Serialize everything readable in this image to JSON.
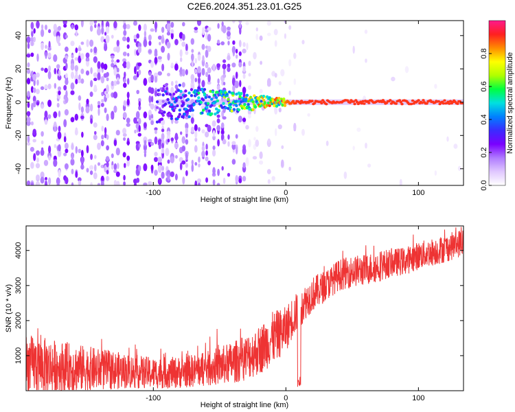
{
  "figure_title": "C2E6.2024.351.23.01.G25",
  "colors": {
    "snr_line": "#ee3333",
    "colormap": [
      "#ffffff",
      "#e0c8ff",
      "#b07cff",
      "#7a00ff",
      "#3b2bff",
      "#0080ff",
      "#00e0e0",
      "#00ff40",
      "#b0ff00",
      "#ffff00",
      "#ff8c00",
      "#ff2020",
      "#ff1a8c"
    ]
  },
  "chart_data": [
    {
      "type": "heatmap",
      "title": "",
      "xlabel": "Height of straight line (km)",
      "ylabel": "Frequency (Hz)",
      "xlim": [
        -196,
        134
      ],
      "ylim": [
        -50,
        49
      ],
      "x_ticks": [
        -100,
        0,
        100
      ],
      "x_tick_labels": [
        "-100",
        "0",
        "100"
      ],
      "y_ticks": [
        -40,
        -20,
        0,
        20,
        40
      ],
      "y_tick_labels": [
        "-40",
        "-20",
        "0",
        "20",
        "40"
      ],
      "colorbar": {
        "label": "Normalized spectral amplitude",
        "range": [
          0,
          1
        ],
        "ticks": [
          0.0,
          0.2,
          0.4,
          0.6,
          0.8
        ],
        "tick_labels": [
          "0.0",
          "0.2",
          "0.4",
          "0.6",
          "0.8"
        ]
      },
      "features": [
        {
          "region": "broadband noise",
          "x_range": [
            -196,
            -30
          ],
          "freq_range": [
            -50,
            49
          ],
          "amplitude": [
            0.05,
            0.25
          ]
        },
        {
          "region": "noise tapering",
          "x_range": [
            -60,
            10
          ],
          "freq_range": [
            -50,
            49
          ],
          "amplitude": [
            0.02,
            0.1
          ]
        },
        {
          "region": "carrier line",
          "x_range": [
            -97,
            134
          ],
          "freq_center": 0,
          "amplitude_start": 0.3,
          "amplitude_end": 0.9
        }
      ]
    },
    {
      "type": "line",
      "title": "",
      "xlabel": "Height of straight line (km)",
      "ylabel": "SNR (10 * v/v)",
      "xlim": [
        -196,
        134
      ],
      "ylim": [
        0,
        4700
      ],
      "x_ticks": [
        -100,
        0,
        100
      ],
      "x_tick_labels": [
        "-100",
        "0",
        "100"
      ],
      "y_ticks": [
        1000,
        2000,
        3000,
        4000
      ],
      "y_tick_labels": [
        "1000",
        "2000",
        "3000",
        "4000"
      ],
      "series": [
        {
          "x": [
            -196,
            -180,
            -160,
            -140,
            -120,
            -100,
            -80,
            -60,
            -40,
            -30,
            -20,
            -10,
            0,
            5,
            10,
            15,
            20,
            30,
            40,
            50,
            60,
            70,
            80,
            90,
            100,
            110,
            120,
            134
          ],
          "y": [
            750,
            700,
            650,
            600,
            560,
            500,
            520,
            620,
            800,
            950,
            1150,
            1500,
            1750,
            2100,
            2300,
            2550,
            2750,
            3000,
            3300,
            3400,
            3450,
            3550,
            3650,
            3700,
            3850,
            3950,
            4050,
            4250
          ],
          "noise_amplitude": [
            1700,
            1600,
            1400,
            1200,
            1000,
            900,
            900,
            1000,
            1200,
            1300,
            1400,
            1500,
            1300,
            1200,
            1100,
            1000,
            1000,
            900,
            900,
            900,
            900,
            900,
            800,
            800,
            800,
            800,
            800,
            800
          ]
        }
      ],
      "annotations": [
        {
          "type": "dip",
          "x": 10,
          "y_min": 100
        }
      ]
    }
  ]
}
